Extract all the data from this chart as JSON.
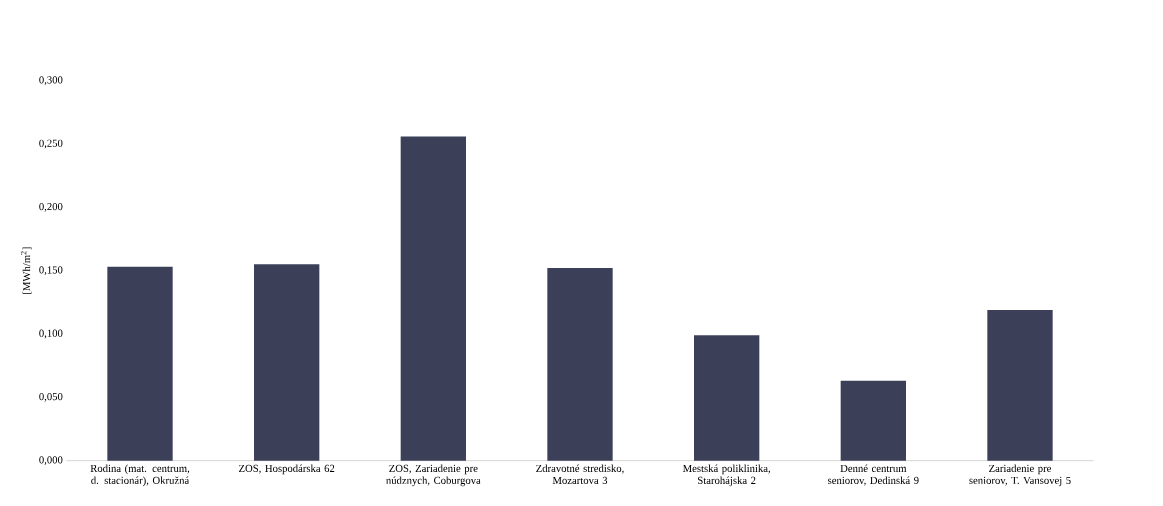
{
  "chart_data": {
    "type": "bar",
    "ylabel": "[MWh/m$^{2}$]",
    "categories": [
      "Rodina (mat. centrum, d. stacionár), Okružná",
      "ZOS, Hospodárska 62",
      "ZOS, Zariadenie pre núdznych, Coburgova",
      "Zdravotné stredisko, Mozartova 3",
      "Mestská poliklinika, Starohájska 2",
      "Denné centrum seniorov, Dedinská 9",
      "Zariadenie pre seniorov, T. Vansovej 5"
    ],
    "values": [
      0.153,
      0.155,
      0.256,
      0.152,
      0.099,
      0.063,
      0.119
    ],
    "color": "#3c3f58",
    "ylim": [
      0,
      0.3
    ],
    "yticks": [
      {
        "value": 0,
        "label": "0,000"
      },
      {
        "value": 0.05,
        "label": "0,050"
      },
      {
        "value": 0.1,
        "label": "0,100"
      },
      {
        "value": 0.15,
        "label": "0,150"
      },
      {
        "value": 0.2,
        "label": "0,200"
      },
      {
        "value": 0.25,
        "label": "0,250"
      },
      {
        "value": 0.3,
        "label": "0,300"
      }
    ]
  }
}
